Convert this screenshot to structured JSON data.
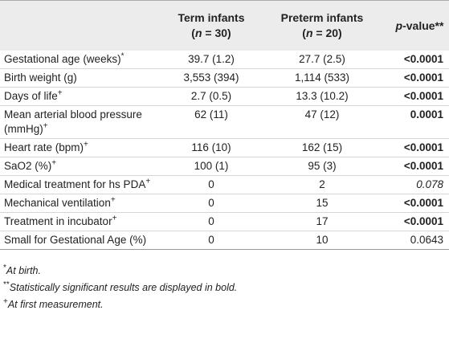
{
  "header": {
    "term": {
      "title": "Term infants",
      "n_parts": [
        "(",
        "n",
        " = 30)"
      ]
    },
    "preterm": {
      "title": "Preterm infants",
      "n_parts": [
        "(",
        "n",
        " = 20)"
      ]
    },
    "p": {
      "parts": [
        "p",
        "-value**"
      ]
    }
  },
  "rows": [
    {
      "label": "Gestational age (weeks)",
      "sup": "*",
      "term": "39.7 (1.2)",
      "preterm": "27.7 (2.5)",
      "p": "<0.0001",
      "p_style": "bold"
    },
    {
      "label": "Birth weight (g)",
      "term": "3,553 (394)",
      "preterm": "1,114 (533)",
      "p": "<0.0001",
      "p_style": "bold"
    },
    {
      "label": "Days of life",
      "sup": "+",
      "term": "2.7 (0.5)",
      "preterm": "13.3 (10.2)",
      "p": "<0.0001",
      "p_style": "bold"
    },
    {
      "label": "Mean arterial blood pressure (mmHg)",
      "sup": "+",
      "term": "62 (11)",
      "preterm": "47 (12)",
      "p": "0.0001",
      "p_style": "bold"
    },
    {
      "label": "Heart rate (bpm)",
      "sup": "+",
      "term": "116 (10)",
      "preterm": "162 (15)",
      "p": "<0.0001",
      "p_style": "bold"
    },
    {
      "label": "SaO2 (%)",
      "sup": "+",
      "term": "100 (1)",
      "preterm": "95 (3)",
      "p": "<0.0001",
      "p_style": "bold"
    },
    {
      "label": "Medical treatment for hs PDA",
      "sup": "+",
      "term": "0",
      "preterm": "2",
      "p": "0.078",
      "p_style": "italic"
    },
    {
      "label": "Mechanical ventilation",
      "sup": "+",
      "term": "0",
      "preterm": "15",
      "p": "<0.0001",
      "p_style": "bold"
    },
    {
      "label": "Treatment in incubator",
      "sup": "+",
      "term": "0",
      "preterm": "17",
      "p": "<0.0001",
      "p_style": "bold"
    },
    {
      "label": "Small for Gestational Age (%)",
      "term": "0",
      "preterm": "10",
      "p": "0.0643",
      "p_style": "normal"
    }
  ],
  "footnotes": [
    {
      "marker": "*",
      "text": "At birth."
    },
    {
      "marker": "**",
      "text": "Statistically significant results are displayed in bold."
    },
    {
      "marker": "+",
      "text": "At first measurement."
    }
  ]
}
